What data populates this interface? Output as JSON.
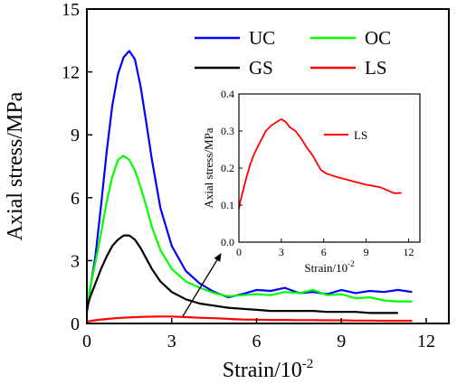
{
  "chart_data": [
    {
      "type": "line",
      "title": "",
      "xlabel": "Strain/10",
      "xlabel_exponent": "-2",
      "ylabel": "Axial stress/MPa",
      "xlim": [
        0,
        12.8
      ],
      "ylim": [
        0,
        15
      ],
      "xticks": [
        0,
        3,
        6,
        9,
        12
      ],
      "yticks": [
        0,
        3,
        6,
        9,
        12,
        15
      ],
      "xtick_labels": [
        "0",
        "3",
        "6",
        "9",
        "12"
      ],
      "ytick_labels": [
        "0",
        "3",
        "6",
        "9",
        "12",
        "15"
      ],
      "grid": false,
      "legend_position": "top-right",
      "series": [
        {
          "name": "UC",
          "color": "#0000ff",
          "x": [
            0,
            0.1,
            0.3,
            0.5,
            0.7,
            0.9,
            1.1,
            1.3,
            1.5,
            1.7,
            1.9,
            2.1,
            2.3,
            2.6,
            3.0,
            3.5,
            4.0,
            4.5,
            5.0,
            5.5,
            6.0,
            6.5,
            7.0,
            7.5,
            8.0,
            8.5,
            9.0,
            9.5,
            10.0,
            10.5,
            11.0,
            11.5
          ],
          "y": [
            0.5,
            1.5,
            3.2,
            5.6,
            8.2,
            10.4,
            11.9,
            12.7,
            13.0,
            12.6,
            11.3,
            9.6,
            7.8,
            5.5,
            3.7,
            2.5,
            1.9,
            1.5,
            1.25,
            1.4,
            1.6,
            1.55,
            1.7,
            1.45,
            1.5,
            1.4,
            1.6,
            1.45,
            1.55,
            1.5,
            1.6,
            1.5
          ]
        },
        {
          "name": "OC",
          "color": "#00ff00",
          "x": [
            0,
            0.1,
            0.3,
            0.5,
            0.7,
            0.9,
            1.1,
            1.3,
            1.5,
            1.7,
            1.9,
            2.1,
            2.3,
            2.6,
            3.0,
            3.5,
            4.0,
            4.5,
            5.0,
            5.5,
            6.0,
            6.5,
            7.0,
            7.5,
            8.0,
            8.5,
            9.0,
            9.5,
            10.0,
            10.5,
            11.0,
            11.5
          ],
          "y": [
            0.8,
            1.6,
            2.9,
            4.3,
            5.8,
            7.0,
            7.8,
            8.0,
            7.8,
            7.3,
            6.5,
            5.6,
            4.6,
            3.5,
            2.6,
            2.0,
            1.7,
            1.45,
            1.3,
            1.35,
            1.4,
            1.35,
            1.5,
            1.45,
            1.6,
            1.35,
            1.4,
            1.2,
            1.25,
            1.1,
            1.05,
            1.05
          ]
        },
        {
          "name": "GS",
          "color": "#000000",
          "x": [
            0,
            0.1,
            0.3,
            0.5,
            0.7,
            0.9,
            1.1,
            1.3,
            1.5,
            1.7,
            1.9,
            2.1,
            2.3,
            2.6,
            3.0,
            3.5,
            4.0,
            4.5,
            5.0,
            5.5,
            6.0,
            6.5,
            7.0,
            7.5,
            8.0,
            8.5,
            9.0,
            9.5,
            10.0,
            10.5,
            11.0
          ],
          "y": [
            0.7,
            1.2,
            1.9,
            2.6,
            3.2,
            3.7,
            4.0,
            4.2,
            4.2,
            4.0,
            3.6,
            3.1,
            2.6,
            2.0,
            1.5,
            1.15,
            0.95,
            0.85,
            0.75,
            0.7,
            0.65,
            0.6,
            0.6,
            0.6,
            0.6,
            0.55,
            0.55,
            0.55,
            0.5,
            0.5,
            0.5
          ]
        },
        {
          "name": "LS",
          "color": "#ff0000",
          "x": [
            0,
            0.3,
            0.6,
            1.0,
            1.5,
            2.0,
            2.5,
            3.0,
            3.5,
            4.0,
            4.5,
            5.0,
            5.5,
            6.0,
            6.5,
            7.0,
            7.5,
            8.0,
            8.5,
            9.0,
            9.5,
            10.0,
            10.5,
            11.0,
            11.5
          ],
          "y": [
            0.09,
            0.15,
            0.2,
            0.25,
            0.29,
            0.32,
            0.33,
            0.33,
            0.3,
            0.27,
            0.25,
            0.22,
            0.19,
            0.18,
            0.17,
            0.17,
            0.16,
            0.16,
            0.15,
            0.15,
            0.14,
            0.14,
            0.13,
            0.13,
            0.13
          ]
        }
      ]
    },
    {
      "type": "line",
      "title": "",
      "xlabel": "Strain/10",
      "xlabel_exponent": "-2",
      "ylabel": "Axial stress/MPa",
      "xlim": [
        0,
        12.8
      ],
      "ylim": [
        0,
        0.4
      ],
      "xticks": [
        0,
        3,
        6,
        9,
        12
      ],
      "yticks": [
        0.0,
        0.1,
        0.2,
        0.3,
        0.4
      ],
      "xtick_labels": [
        "0",
        "3",
        "6",
        "9",
        "12"
      ],
      "ytick_labels": [
        "0.0",
        "0.1",
        "0.2",
        "0.3",
        "0.4"
      ],
      "grid": false,
      "legend_position": "top-right",
      "series": [
        {
          "name": "LS",
          "color": "#ff0000",
          "x": [
            0,
            0.1,
            0.3,
            0.5,
            0.8,
            1.1,
            1.5,
            1.9,
            2.3,
            2.7,
            3.0,
            3.3,
            3.6,
            4.0,
            4.4,
            4.8,
            5.2,
            5.5,
            5.8,
            6.2,
            6.6,
            7.0,
            7.5,
            8.0,
            8.5,
            9.0,
            9.5,
            10.0,
            10.5,
            11.0,
            11.5
          ],
          "y": [
            0.09,
            0.11,
            0.14,
            0.17,
            0.21,
            0.24,
            0.27,
            0.3,
            0.315,
            0.325,
            0.332,
            0.325,
            0.31,
            0.3,
            0.28,
            0.255,
            0.235,
            0.215,
            0.195,
            0.185,
            0.18,
            0.175,
            0.17,
            0.165,
            0.16,
            0.155,
            0.152,
            0.148,
            0.14,
            0.132,
            0.133
          ]
        }
      ]
    }
  ]
}
